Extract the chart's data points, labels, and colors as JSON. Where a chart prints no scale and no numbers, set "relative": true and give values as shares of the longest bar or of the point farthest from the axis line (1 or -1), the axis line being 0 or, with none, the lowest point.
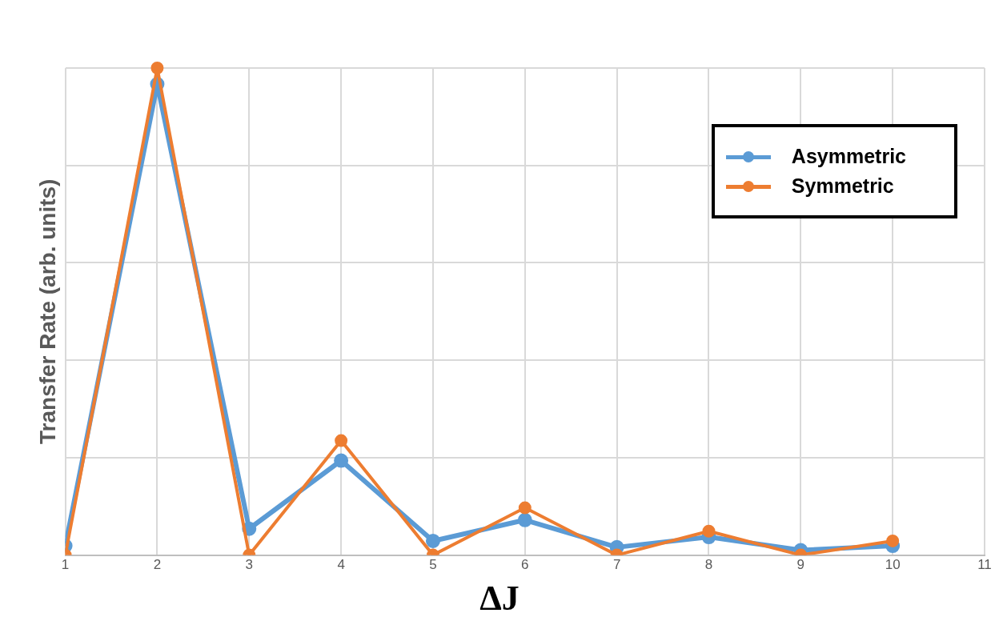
{
  "chart_data": {
    "type": "line",
    "relative": true,
    "xlabel": "ΔJ",
    "ylabel": "Transfer Rate (arb. units)",
    "x": [
      1,
      2,
      3,
      4,
      5,
      6,
      7,
      8,
      9,
      10
    ],
    "xlim": [
      1,
      11
    ],
    "xticks": [
      1,
      2,
      3,
      4,
      5,
      6,
      7,
      8,
      9,
      10,
      11
    ],
    "series": [
      {
        "name": "Asymmetric",
        "color": "#5b9bd5",
        "values": [
          0.019,
          0.967,
          0.054,
          0.194,
          0.029,
          0.072,
          0.016,
          0.037,
          0.01,
          0.019
        ]
      },
      {
        "name": "Symmetric",
        "color": "#ed7d31",
        "values": [
          0,
          1,
          0,
          0.235,
          0,
          0.097,
          0,
          0.049,
          0,
          0.029
        ]
      }
    ],
    "grid": true,
    "legend": "top right",
    "marker": "circle",
    "line_style": "solid"
  }
}
